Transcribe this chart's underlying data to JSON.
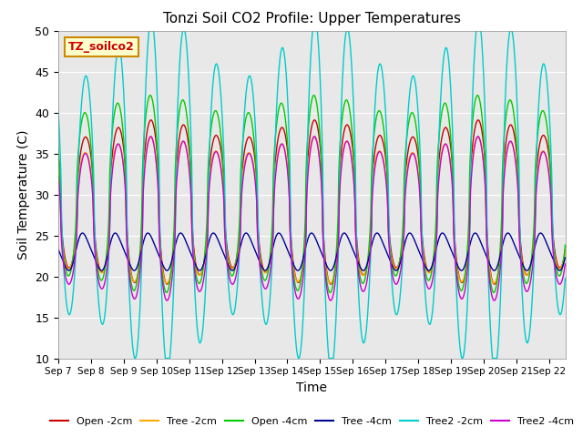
{
  "title": "Tonzi Soil CO2 Profile: Upper Temperatures",
  "xlabel": "Time",
  "ylabel": "Soil Temperature (C)",
  "ylim": [
    10,
    50
  ],
  "yticks": [
    10,
    15,
    20,
    25,
    30,
    35,
    40,
    45,
    50
  ],
  "bg_color": "#e8e8e8",
  "annotation_text": "TZ_soilco2",
  "annotation_bg": "#ffffcc",
  "annotation_edge": "#cc8800",
  "annotation_text_color": "#cc0000",
  "series": [
    {
      "label": "Open -2cm",
      "color": "#cc0000"
    },
    {
      "label": "Tree -2cm",
      "color": "#ffaa00"
    },
    {
      "label": "Open -4cm",
      "color": "#00cc00"
    },
    {
      "label": "Tree -4cm",
      "color": "#000099"
    },
    {
      "label": "Tree2 -2cm",
      "color": "#00cccc"
    },
    {
      "label": "Tree2 -4cm",
      "color": "#cc00cc"
    }
  ],
  "n_days": 15.5,
  "start_day": 7,
  "dt": 0.01,
  "open2_base": 29,
  "open2_amp": 9,
  "tree2cm_base": 28,
  "tree2cm_amp": 8,
  "open4_base": 30,
  "open4_amp": 11,
  "tree4_base": 23,
  "tree4_amp": 2.2,
  "tree2_2cm_base": 30,
  "tree2_2cm_amp": 18,
  "tree2_4cm_base": 27,
  "tree2_4cm_amp": 9,
  "peak_hour": 0.58,
  "figwidth": 6.4,
  "figheight": 4.8,
  "dpi": 100
}
